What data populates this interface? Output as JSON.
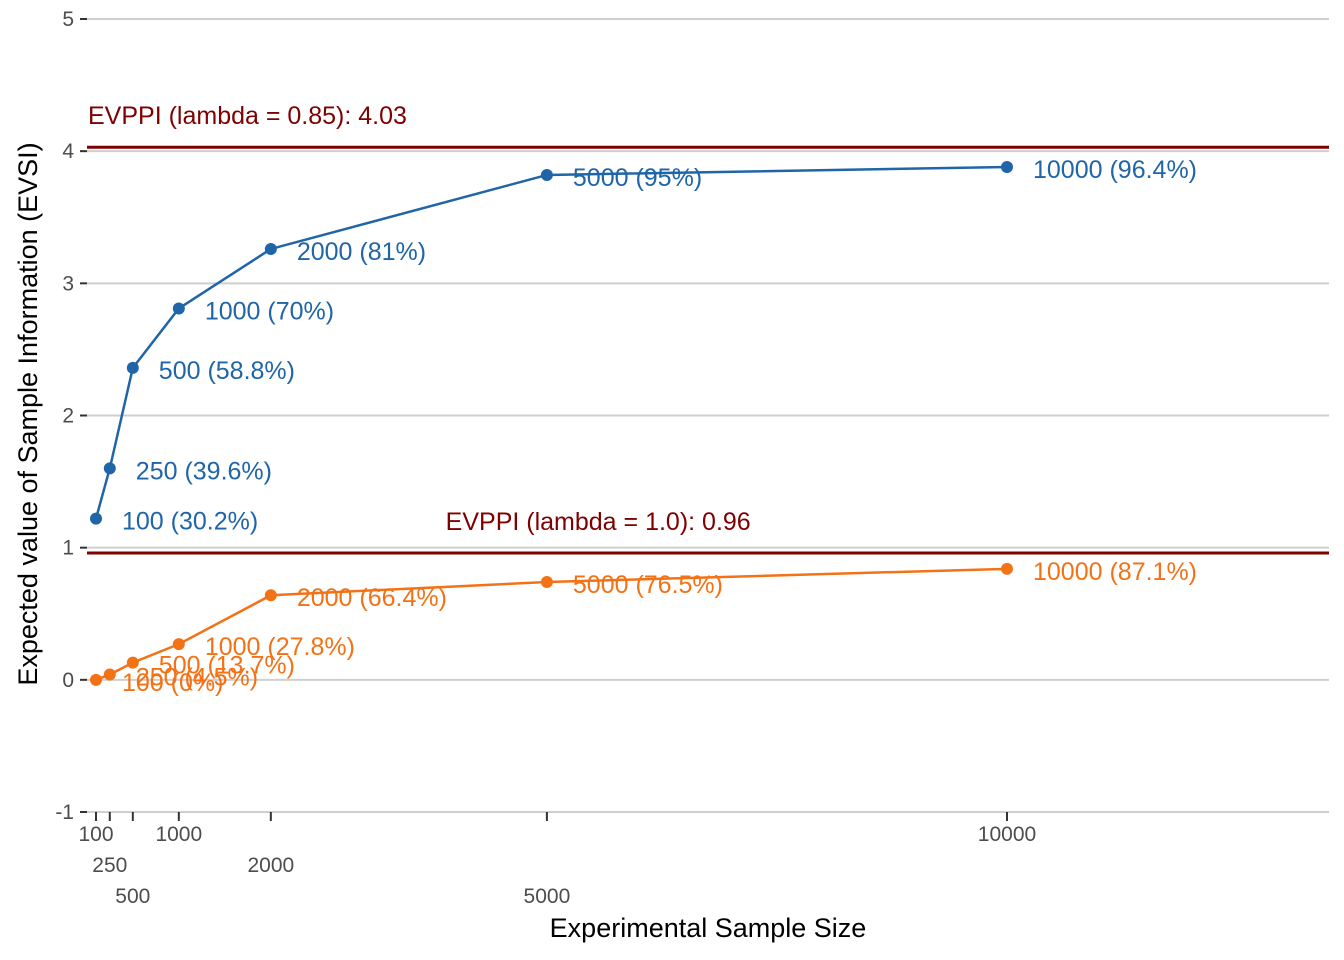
{
  "chart_data": {
    "type": "line",
    "xlabel": "Experimental Sample Size",
    "ylabel": "Expected value of Sample Information (EVSI)",
    "xlim": [
      0,
      14000
    ],
    "ylim": [
      -1,
      5
    ],
    "y_ticks": [
      -1,
      0,
      1,
      2,
      3,
      4,
      5
    ],
    "x_ticks": [
      {
        "value": 100,
        "label": "100",
        "row": 0
      },
      {
        "value": 250,
        "label": "250",
        "row": 1
      },
      {
        "value": 500,
        "label": "500",
        "row": 2
      },
      {
        "value": 1000,
        "label": "1000",
        "row": 0
      },
      {
        "value": 2000,
        "label": "2000",
        "row": 1
      },
      {
        "value": 5000,
        "label": "5000",
        "row": 2
      },
      {
        "value": 10000,
        "label": "10000",
        "row": 0
      }
    ],
    "grid": "horizontal",
    "reference_lines": [
      {
        "value": 4.03,
        "label": "EVPPI (lambda = 0.85): 4.03",
        "color": "#7f0000",
        "label_x": 0
      },
      {
        "value": 0.96,
        "label": "EVPPI (lambda = 1.0): 0.96",
        "color": "#7f0000",
        "label_x": 3900
      }
    ],
    "series": [
      {
        "color": "#1f65a8",
        "x": [
          100,
          250,
          500,
          1000,
          2000,
          5000,
          10000
        ],
        "y": [
          1.22,
          1.6,
          2.36,
          2.81,
          3.26,
          3.82,
          3.88
        ],
        "labels": [
          "100 (30.2%)",
          "250 (39.6%)",
          "500 (58.8%)",
          "1000 (70%)",
          "2000 (81%)",
          "5000 (95%)",
          "10000 (96.4%)"
        ]
      },
      {
        "color": "#f47216",
        "x": [
          100,
          250,
          500,
          1000,
          2000,
          5000,
          10000
        ],
        "y": [
          0.0,
          0.04,
          0.13,
          0.27,
          0.64,
          0.74,
          0.84
        ],
        "labels": [
          "100 (0%)",
          "250 (4.5%)",
          "500 (13.7%)",
          "1000 (27.8%)",
          "2000 (66.4%)",
          "5000 (76.5%)",
          "10000 (87.1%)"
        ]
      }
    ]
  }
}
